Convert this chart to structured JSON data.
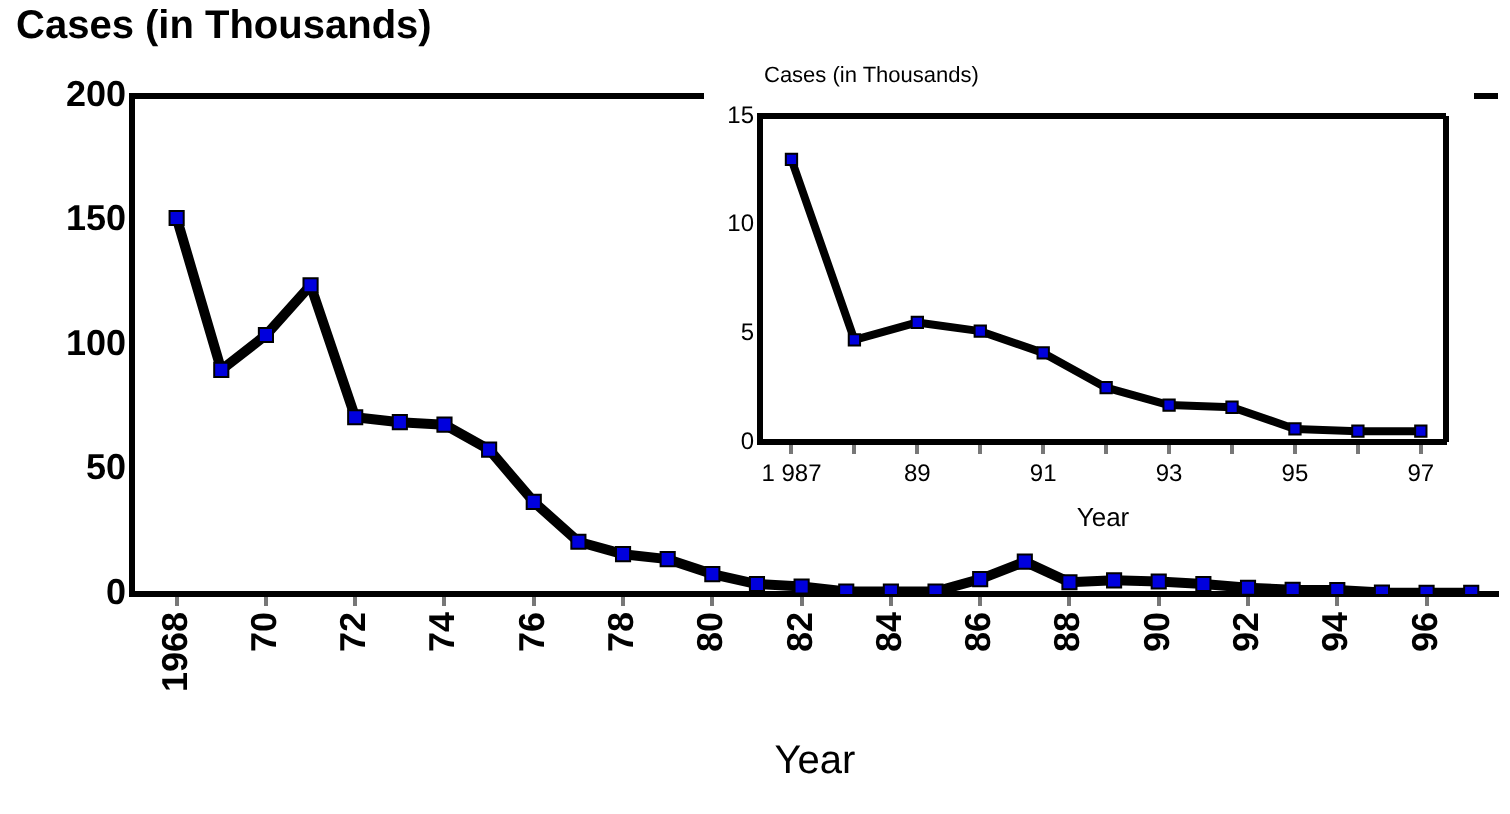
{
  "chart_data": [
    {
      "type": "line",
      "ylabel": "Cases (in Thousands)",
      "xlabel": "Year",
      "x": [
        1968,
        1969,
        1970,
        1971,
        1972,
        1973,
        1974,
        1975,
        1976,
        1977,
        1978,
        1979,
        1980,
        1981,
        1982,
        1983,
        1984,
        1985,
        1986,
        1987,
        1988,
        1989,
        1990,
        1991,
        1992,
        1993,
        1994,
        1995,
        1996,
        1997
      ],
      "series": [
        {
          "color": "#000000",
          "values": [
            151,
            90,
            104,
            124,
            71,
            69,
            68,
            58,
            37,
            21,
            16,
            14,
            8,
            4,
            3,
            1,
            1,
            1,
            6,
            13,
            4.7,
            5.5,
            5,
            4,
            2.5,
            1.7,
            1.6,
            0.6,
            0.5,
            0.5
          ]
        }
      ],
      "xlim": [
        1967,
        1997.6
      ],
      "xticks": [
        {
          "value": 1968,
          "label": "1968"
        },
        {
          "value": 1970,
          "label": "70"
        },
        {
          "value": 1972,
          "label": "72"
        },
        {
          "value": 1974,
          "label": "74"
        },
        {
          "value": 1976,
          "label": "76"
        },
        {
          "value": 1978,
          "label": "78"
        },
        {
          "value": 1980,
          "label": "80"
        },
        {
          "value": 1982,
          "label": "82"
        },
        {
          "value": 1984,
          "label": "84"
        },
        {
          "value": 1986,
          "label": "86"
        },
        {
          "value": 1988,
          "label": "88"
        },
        {
          "value": 1990,
          "label": "90"
        },
        {
          "value": 1992,
          "label": "92"
        },
        {
          "value": 1994,
          "label": "94"
        },
        {
          "value": 1996,
          "label": "96"
        }
      ],
      "ylim": [
        0,
        200
      ],
      "yticks": [
        0,
        50,
        100,
        150,
        200
      ],
      "marker": "square",
      "grid": false
    },
    {
      "type": "line",
      "ylabel": "Cases (in Thousands)",
      "xlabel": "Year",
      "x": [
        1987,
        1988,
        1989,
        1990,
        1991,
        1992,
        1993,
        1994,
        1995,
        1996,
        1997
      ],
      "series": [
        {
          "color": "#000000",
          "values": [
            13,
            4.7,
            5.5,
            5.1,
            4.1,
            2.5,
            1.7,
            1.6,
            0.6,
            0.5,
            0.5
          ]
        }
      ],
      "xlim": [
        1986.5,
        1997.4
      ],
      "xticks": [
        {
          "value": 1987,
          "label": "1 987"
        },
        {
          "value": 1988,
          "label": null
        },
        {
          "value": 1989,
          "label": "89"
        },
        {
          "value": 1990,
          "label": null
        },
        {
          "value": 1991,
          "label": "91"
        },
        {
          "value": 1992,
          "label": null
        },
        {
          "value": 1993,
          "label": "93"
        },
        {
          "value": 1994,
          "label": null
        },
        {
          "value": 1995,
          "label": "95"
        },
        {
          "value": 1996,
          "label": null
        },
        {
          "value": 1997,
          "label": "97"
        }
      ],
      "ylim": [
        0,
        15
      ],
      "yticks": [
        0,
        5,
        10,
        15
      ],
      "marker": "square",
      "grid": false
    }
  ]
}
